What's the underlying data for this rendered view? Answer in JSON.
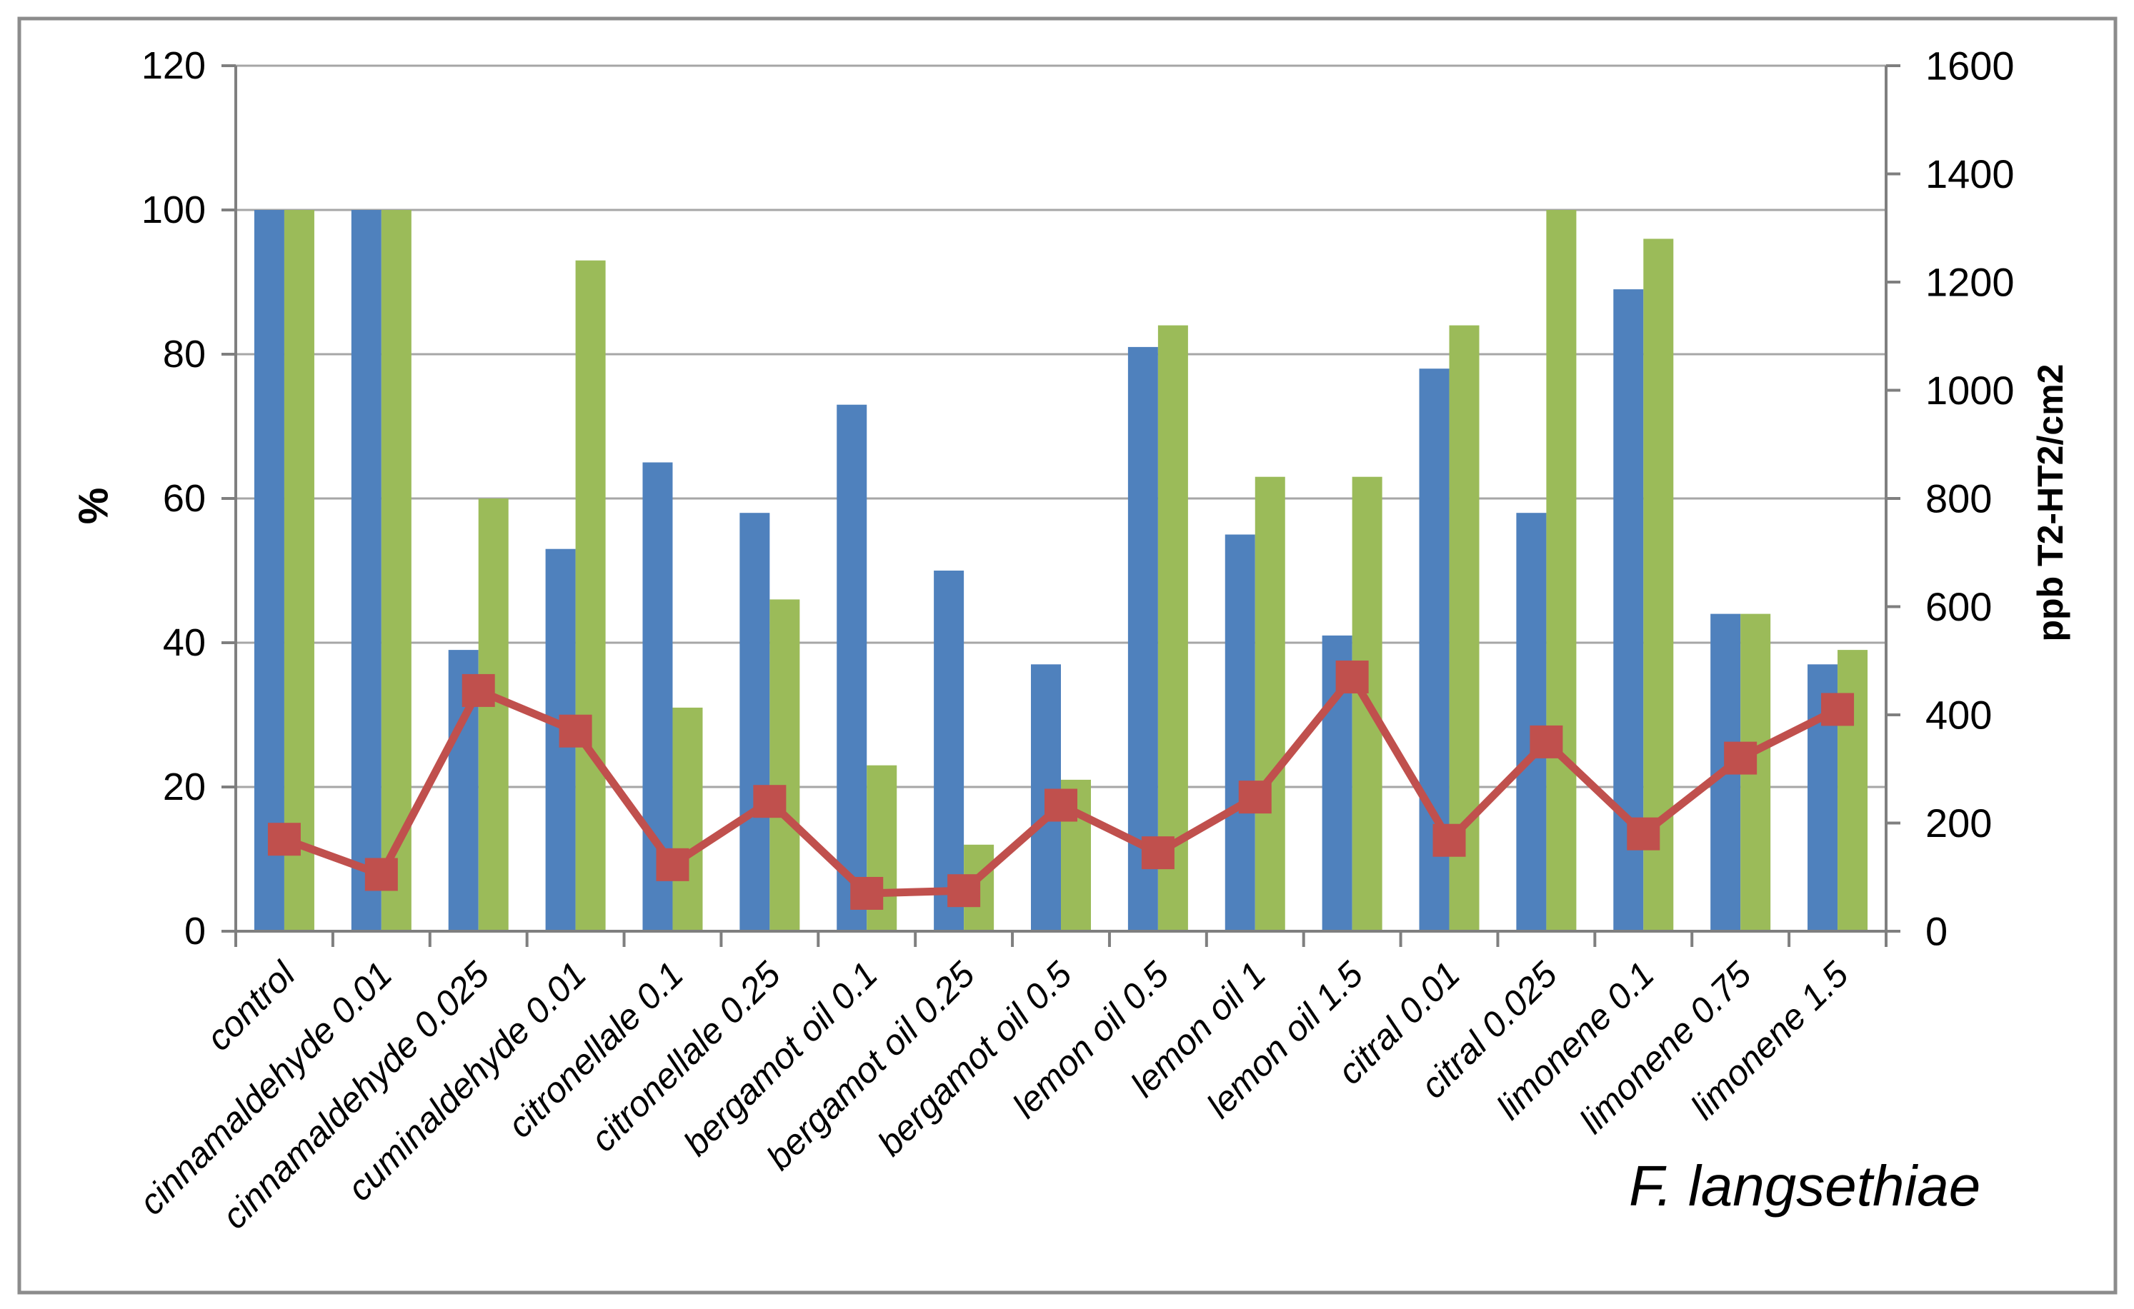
{
  "chart_data": {
    "type": "bar+line-combo",
    "title": "",
    "annotation": "F. langsethiae",
    "categories": [
      "control",
      "cinnamaldehyde 0.01",
      "cinnamaldehyde 0.025",
      "cuminaldehyde 0.01",
      "citronellale 0.1",
      "citronellale 0.25",
      "bergamot oil 0.1",
      "bergamot oil 0.25",
      "bergamot oil 0.5",
      "lemon oil 0.5",
      "lemon oil 1",
      "lemon oil 1.5",
      "citral 0.01",
      "citral 0.025",
      "limonene 0.1",
      "limonene 0.75",
      "limonene 1.5"
    ],
    "series": [
      {
        "name": "series-blue-bar",
        "type": "bar",
        "axis": "left",
        "color": "#4F81BD",
        "values": [
          100,
          100,
          39,
          53,
          65,
          58,
          73,
          50,
          37,
          81,
          55,
          41,
          78,
          58,
          89,
          44,
          37
        ]
      },
      {
        "name": "series-green-bar",
        "type": "bar",
        "axis": "left",
        "color": "#9BBB59",
        "values": [
          100,
          100,
          60,
          93,
          31,
          46,
          23,
          12,
          21,
          84,
          63,
          63,
          84,
          100,
          96,
          44,
          39
        ]
      },
      {
        "name": "series-red-line",
        "type": "line",
        "axis": "right",
        "color": "#C0504D",
        "values": [
          170,
          105,
          445,
          370,
          123,
          240,
          70,
          75,
          233,
          145,
          248,
          470,
          168,
          350,
          180,
          320,
          410
        ]
      }
    ],
    "left_axis": {
      "label": "%",
      "min": 0,
      "max": 120,
      "step": 20
    },
    "right_axis": {
      "label": "ppb T2-HT2/cm2",
      "min": 0,
      "max": 1600,
      "step": 200
    },
    "grid": true,
    "legend": false,
    "colors": {
      "gridline": "#A6A6A6",
      "axis": "#7F7F7F",
      "frame": "#8C8C8C",
      "text": "#000000",
      "background": "#FFFFFF"
    }
  }
}
